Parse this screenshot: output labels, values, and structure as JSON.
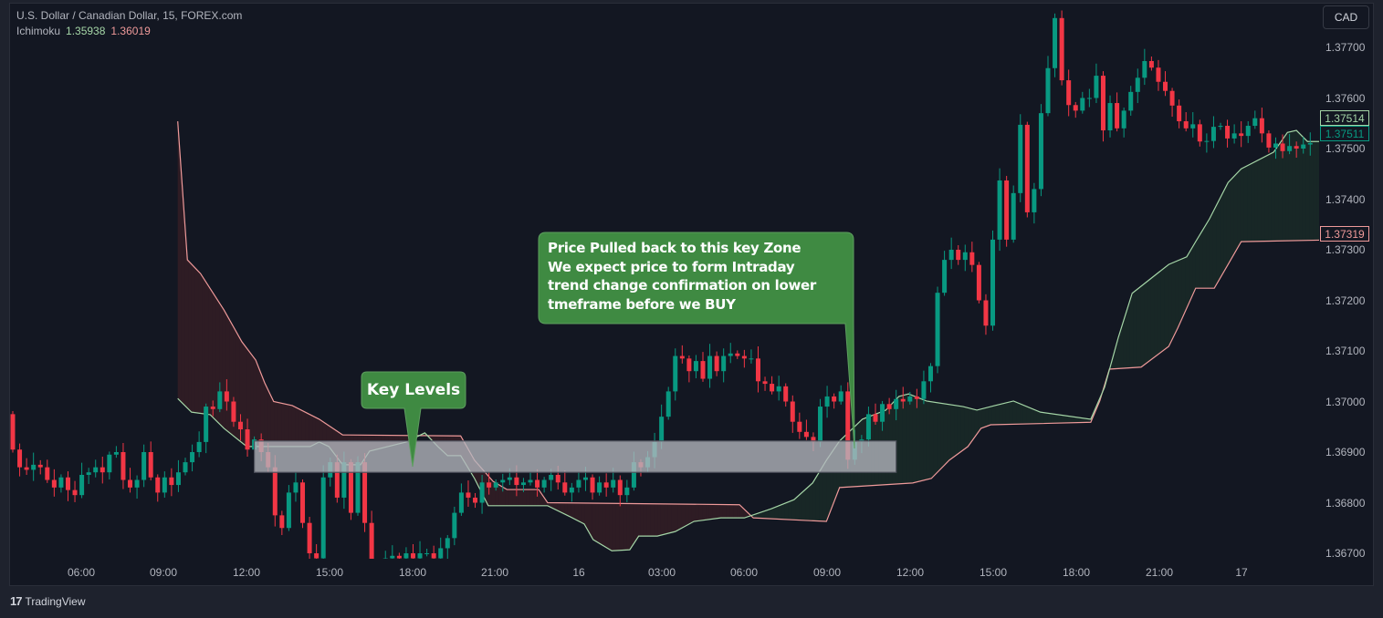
{
  "header": {
    "title": "U.S. Dollar / Canadian Dollar, 15, FOREX.com",
    "indicator_name": "Ichimoku",
    "indicator_value_a": "1.35938",
    "indicator_value_b": "1.36019"
  },
  "currency_button": "CAD",
  "branding": "TradingView",
  "annotations": {
    "key_levels": "Key Levels",
    "zone_note": [
      "Price Pulled back to this key Zone",
      "We expect price to form Intraday",
      "trend change confirmation on lower",
      "tmeframe before we BUY"
    ]
  },
  "colors": {
    "up": "#089981",
    "down": "#f23645",
    "span_a": "#a5d6a7",
    "span_b": "#ef9a9a",
    "callout": "#3f8a42",
    "zone": "#b4b6be"
  },
  "chart_data": {
    "type": "candlestick",
    "symbol": "USDCAD",
    "interval_minutes": 15,
    "x_tick_labels": [
      "06:00",
      "09:00",
      "12:00",
      "15:00",
      "18:00",
      "21:00",
      "16",
      "03:00",
      "06:00",
      "09:00",
      "12:00",
      "15:00",
      "18:00",
      "21:00",
      "17"
    ],
    "y_tick_labels": [
      "1.37700",
      "1.37600",
      "1.37500",
      "1.37400",
      "1.37300",
      "1.37200",
      "1.37100",
      "1.37000",
      "1.36900",
      "1.36800",
      "1.36700"
    ],
    "ylim": [
      1.3669,
      1.3782
    ],
    "last_price_labels": {
      "span_a": "1.37514",
      "close": "1.37511",
      "span_b": "1.37319"
    },
    "closes": [
      1.36905,
      1.3687,
      1.36865,
      1.36875,
      1.3687,
      1.36845,
      1.3683,
      1.3685,
      1.36825,
      1.36815,
      1.36855,
      1.3686,
      1.3687,
      1.3686,
      1.36895,
      1.369,
      1.36845,
      1.3683,
      1.36845,
      1.369,
      1.3685,
      1.3682,
      1.3685,
      1.36835,
      1.3686,
      1.3688,
      1.369,
      1.3692,
      1.3699,
      1.36985,
      1.3702,
      1.37,
      1.3696,
      1.36945,
      1.36905,
      1.36925,
      1.369,
      1.3687,
      1.36775,
      1.3675,
      1.3682,
      1.3684,
      1.3676,
      1.367,
      1.3669,
      1.3685,
      1.3688,
      1.3681,
      1.3688,
      1.3678,
      1.3688,
      1.3676,
      1.3668,
      1.3668,
      1.3669,
      1.36695,
      1.3669,
      1.367,
      1.3669,
      1.367,
      1.367,
      1.3669,
      1.3671,
      1.3673,
      1.3678,
      1.3682,
      1.3681,
      1.368,
      1.3684,
      1.3683,
      1.3684,
      1.36845,
      1.3685,
      1.36835,
      1.3684,
      1.36845,
      1.3683,
      1.36845,
      1.36855,
      1.3684,
      1.3682,
      1.3683,
      1.36845,
      1.3685,
      1.3682,
      1.3684,
      1.3683,
      1.36845,
      1.36815,
      1.3683,
      1.3688,
      1.3687,
      1.3689,
      1.3692,
      1.3697,
      1.3702,
      1.3709,
      1.37085,
      1.3706,
      1.3708,
      1.37045,
      1.3709,
      1.3706,
      1.3709,
      1.37095,
      1.3709,
      1.37085,
      1.37085,
      1.3704,
      1.37035,
      1.3702,
      1.3703,
      1.37,
      1.3696,
      1.3694,
      1.3693,
      1.3692,
      1.3699,
      1.3701,
      1.37,
      1.3702,
      1.36885,
      1.3692,
      1.36925,
      1.36975,
      1.3696,
      1.36995,
      1.36985,
      1.37005,
      1.37,
      1.3701,
      1.37005,
      1.3704,
      1.3707,
      1.37215,
      1.3728,
      1.373,
      1.3728,
      1.37295,
      1.3727,
      1.372,
      1.3715,
      1.3732,
      1.37437,
      1.3732,
      1.37412,
      1.37547,
      1.37374,
      1.3742,
      1.3757,
      1.37659,
      1.37758,
      1.37635,
      1.37586,
      1.37575,
      1.376,
      1.376,
      1.37644,
      1.37536,
      1.3759,
      1.3754,
      1.37575,
      1.37612,
      1.3764,
      1.37673,
      1.3766,
      1.37632,
      1.37614,
      1.37585,
      1.37554,
      1.3754,
      1.37548,
      1.37514,
      1.37515,
      1.37543,
      1.37545,
      1.3752,
      1.3753,
      1.37525,
      1.37545,
      1.3756,
      1.3753,
      1.37502,
      1.3751,
      1.37495,
      1.37505,
      1.375,
      1.37508,
      1.37511
    ],
    "ichimoku_span_a": [
      [
        23.9,
        1.37006
      ],
      [
        25.9,
        1.36979
      ],
      [
        28.6,
        1.36974
      ],
      [
        30.6,
        1.36947
      ],
      [
        33.9,
        1.36911
      ],
      [
        43.1,
        1.36911
      ],
      [
        44.4,
        1.3692
      ],
      [
        45.8,
        1.36911
      ],
      [
        47.8,
        1.36875
      ],
      [
        50.4,
        1.36875
      ],
      [
        51.7,
        1.36902
      ],
      [
        57.0,
        1.3692
      ],
      [
        59.7,
        1.36938
      ],
      [
        61.6,
        1.36911
      ],
      [
        63.0,
        1.36893
      ],
      [
        64.9,
        1.36893
      ],
      [
        66.9,
        1.36848
      ],
      [
        68.9,
        1.36794
      ],
      [
        77.5,
        1.36794
      ],
      [
        80.8,
        1.36772
      ],
      [
        82.8,
        1.36758
      ],
      [
        84.1,
        1.36727
      ],
      [
        86.8,
        1.36705
      ],
      [
        89.4,
        1.36707
      ],
      [
        90.7,
        1.36734
      ],
      [
        93.4,
        1.36734
      ],
      [
        96.0,
        1.36743
      ],
      [
        98.7,
        1.36763
      ],
      [
        102.6,
        1.3677
      ],
      [
        106.0,
        1.3677
      ],
      [
        109.9,
        1.36788
      ],
      [
        113.2,
        1.36806
      ],
      [
        115.9,
        1.36839
      ],
      [
        117.9,
        1.36884
      ],
      [
        119.8,
        1.36922
      ],
      [
        123.1,
        1.36965
      ],
      [
        126.5,
        1.36983
      ],
      [
        128.4,
        1.3701
      ],
      [
        129.8,
        1.37015
      ],
      [
        132.4,
        1.37001
      ],
      [
        137.7,
        1.3699
      ],
      [
        139.7,
        1.36983
      ],
      [
        142.3,
        1.36992
      ],
      [
        145.0,
        1.37001
      ],
      [
        148.9,
        1.36979
      ],
      [
        156.2,
        1.36965
      ],
      [
        158.2,
        1.37028
      ],
      [
        160.2,
        1.37127
      ],
      [
        162.2,
        1.37214
      ],
      [
        167.5,
        1.37271
      ],
      [
        170.1,
        1.37286
      ],
      [
        171.4,
        1.37316
      ],
      [
        173.4,
        1.37361
      ],
      [
        176.1,
        1.37433
      ],
      [
        178.0,
        1.3746
      ],
      [
        182.7,
        1.37493
      ],
      [
        184.7,
        1.37532
      ],
      [
        186.0,
        1.37536
      ],
      [
        187.6,
        1.37514
      ],
      [
        189.3,
        1.37514
      ]
    ],
    "ichimoku_span_b": [
      [
        23.9,
        1.37554
      ],
      [
        25.3,
        1.3728
      ],
      [
        27.2,
        1.37253
      ],
      [
        30.6,
        1.37181
      ],
      [
        33.2,
        1.37118
      ],
      [
        35.2,
        1.37082
      ],
      [
        36.5,
        1.37037
      ],
      [
        37.8,
        1.37
      ],
      [
        40.5,
        1.36992
      ],
      [
        43.1,
        1.36974
      ],
      [
        44.4,
        1.36965
      ],
      [
        47.8,
        1.36934
      ],
      [
        64.9,
        1.36932
      ],
      [
        66.9,
        1.36884
      ],
      [
        69.6,
        1.36842
      ],
      [
        71.6,
        1.36826
      ],
      [
        76.2,
        1.36826
      ],
      [
        77.5,
        1.368
      ],
      [
        105.3,
        1.36796
      ],
      [
        107.3,
        1.3677
      ],
      [
        117.9,
        1.36763
      ],
      [
        119.8,
        1.3683
      ],
      [
        130.4,
        1.36839
      ],
      [
        133.1,
        1.36848
      ],
      [
        135.7,
        1.36884
      ],
      [
        138.4,
        1.36911
      ],
      [
        140.3,
        1.36947
      ],
      [
        141.7,
        1.36954
      ],
      [
        156.2,
        1.36959
      ],
      [
        157.5,
        1.37001
      ],
      [
        158.9,
        1.37064
      ],
      [
        163.5,
        1.37068
      ],
      [
        167.5,
        1.37109
      ],
      [
        168.8,
        1.37145
      ],
      [
        171.4,
        1.37224
      ],
      [
        174.1,
        1.37224
      ],
      [
        176.1,
        1.37271
      ],
      [
        178.0,
        1.37316
      ],
      [
        189.3,
        1.37319
      ]
    ],
    "key_zone": {
      "from_bar": 35,
      "to_bar": 128,
      "low": 1.3686,
      "high": 1.36922
    }
  }
}
